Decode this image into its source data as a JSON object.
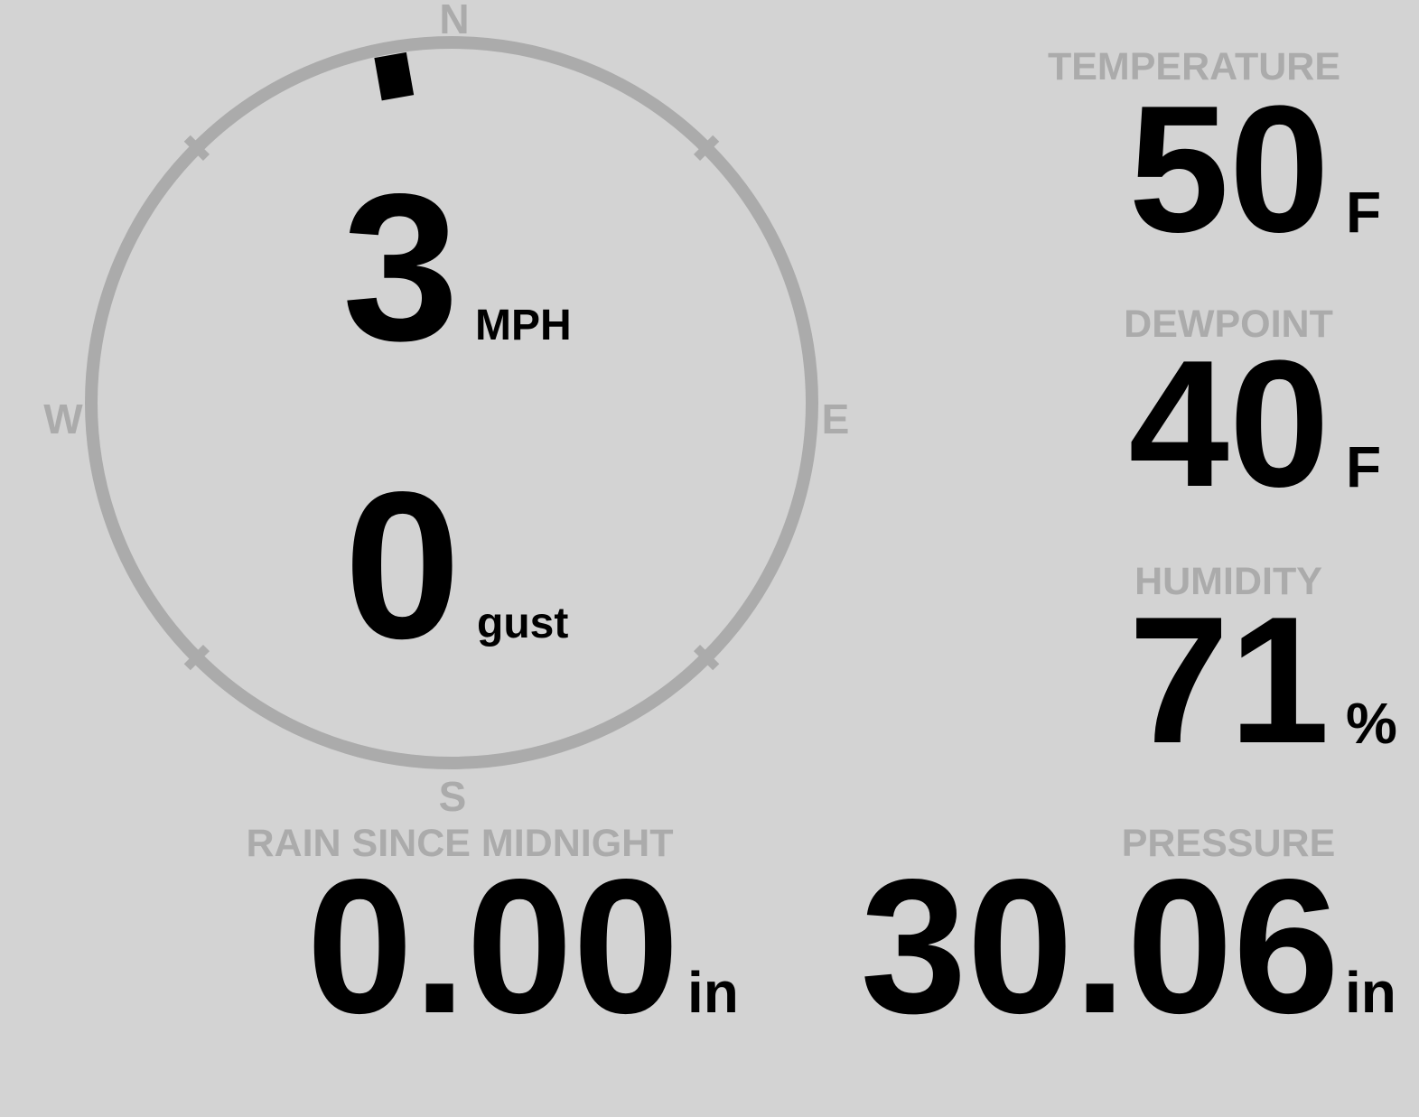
{
  "theme": {
    "background": "#d3d3d3",
    "muted_gray": "#ababab",
    "foreground": "#000000"
  },
  "wind": {
    "speed": "3",
    "speed_unit": "MPH",
    "gust": "0",
    "gust_unit": "gust",
    "direction_degrees": 350,
    "cardinals": {
      "north": "N",
      "east": "E",
      "south": "S",
      "west": "W"
    }
  },
  "metrics": {
    "temperature": {
      "label": "TEMPERATURE",
      "value": "50",
      "unit": "F"
    },
    "dewpoint": {
      "label": "DEWPOINT",
      "value": "40",
      "unit": "F"
    },
    "humidity": {
      "label": "HUMIDITY",
      "value": "71",
      "unit": "%"
    },
    "rain": {
      "label": "RAIN SINCE MIDNIGHT",
      "value": "0.00",
      "unit": "in"
    },
    "pressure": {
      "label": "PRESSURE",
      "value": "30.06",
      "unit": "in"
    }
  }
}
